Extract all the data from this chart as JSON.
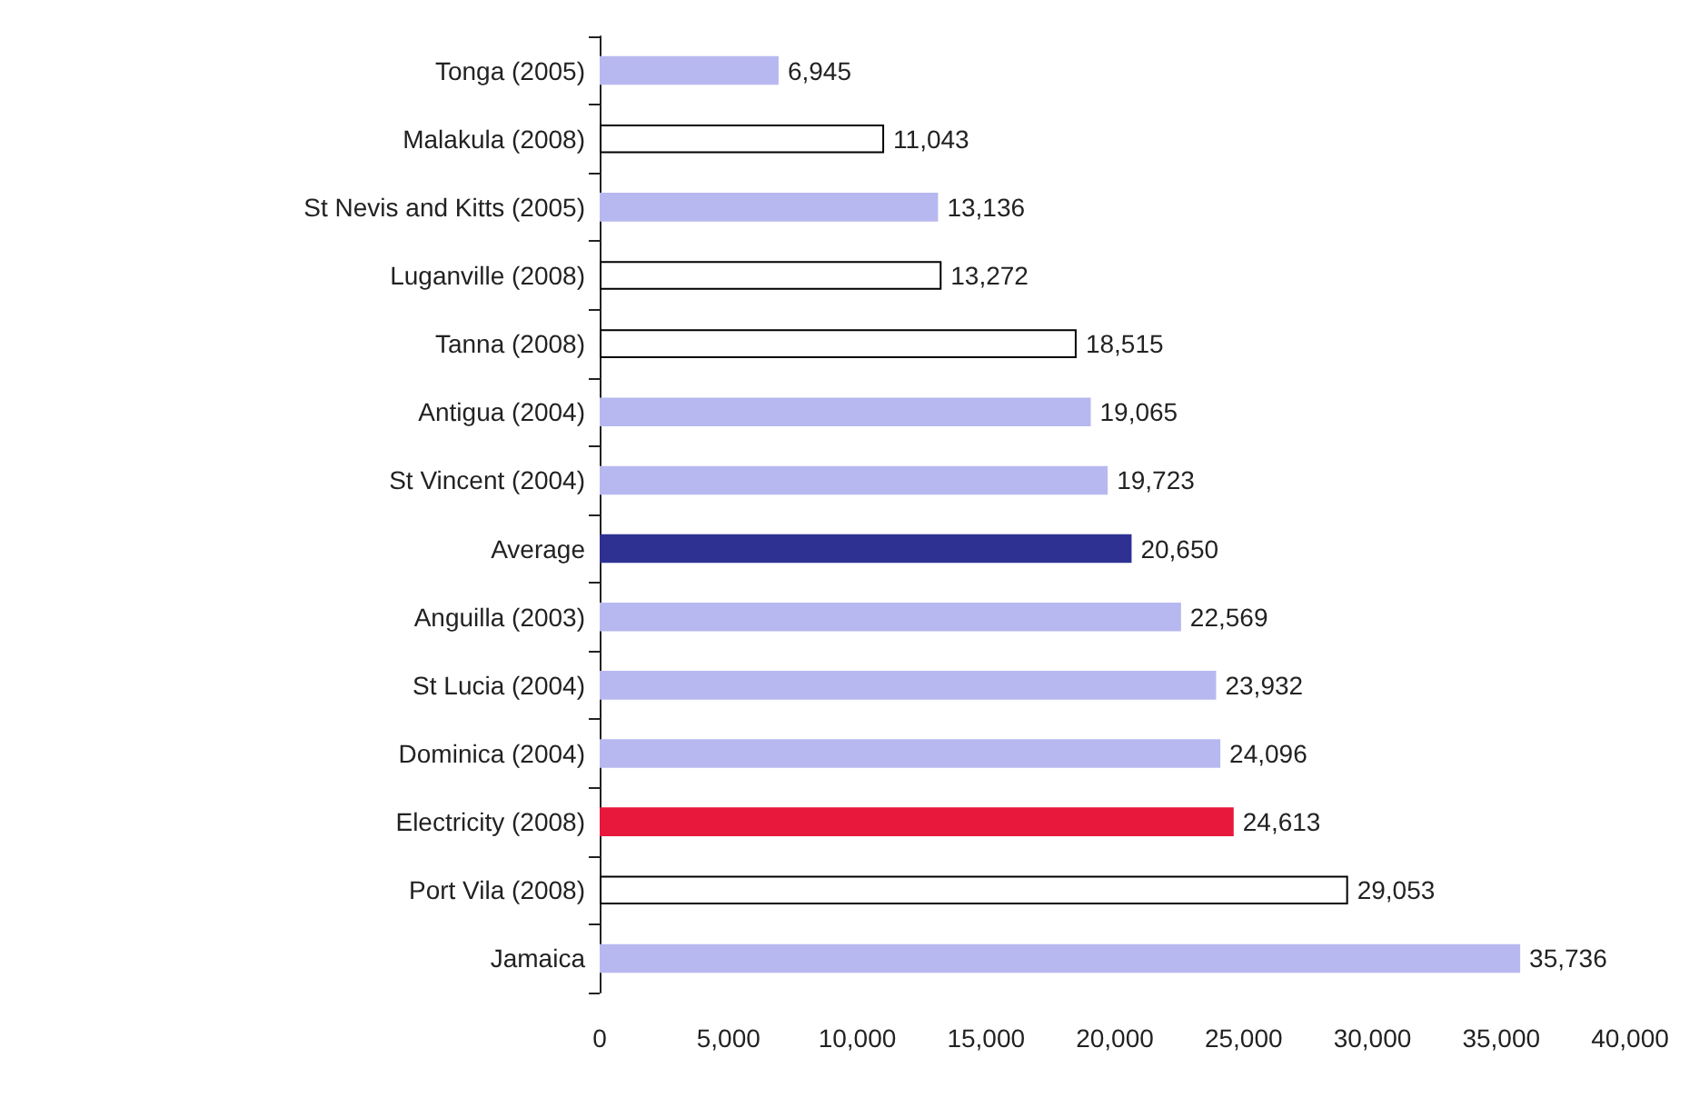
{
  "chart_data": {
    "type": "bar",
    "orientation": "horizontal",
    "categories": [
      "Tonga (2005)",
      "Malakula (2008)",
      "St Nevis and Kitts (2005)",
      "Luganville (2008)",
      "Tanna (2008)",
      "Antigua (2004)",
      "St Vincent (2004)",
      "Average",
      "Anguilla (2003)",
      "St Lucia (2004)",
      "Dominica (2004)",
      "Electricity (2008)",
      "Port Vila (2008)",
      "Jamaica"
    ],
    "values": [
      6945,
      11043,
      13136,
      13272,
      18515,
      19065,
      19723,
      20650,
      22569,
      23932,
      24096,
      24613,
      29053,
      35736
    ],
    "value_labels": [
      "6,945",
      "11,043",
      "13,136",
      "13,272",
      "18,515",
      "19,065",
      "19,723",
      "20,650",
      "22,569",
      "23,932",
      "24,096",
      "24,613",
      "29,053",
      "35,736"
    ],
    "colors": [
      "#b8b8f0",
      "#ffffff",
      "#b8b8f0",
      "#ffffff",
      "#ffffff",
      "#b8b8f0",
      "#b8b8f0",
      "#2e3192",
      "#b8b8f0",
      "#b8b8f0",
      "#b8b8f0",
      "#e8173c",
      "#ffffff",
      "#b8b8f0"
    ],
    "xlim": [
      0,
      40000
    ],
    "xticks": [
      0,
      {
        "value": 5000,
        "label": "5,000"
      },
      {
        "value": 10000,
        "label": "10,000"
      },
      {
        "value": 15000,
        "label": "15,000"
      },
      {
        "value": 20000,
        "label": "20,000"
      },
      {
        "value": 25000,
        "label": "25,000"
      },
      {
        "value": 30000,
        "label": "30,000"
      },
      {
        "value": 35000,
        "label": "35,000"
      },
      {
        "value": 40000,
        "label": "40,000"
      }
    ],
    "grid": false
  }
}
